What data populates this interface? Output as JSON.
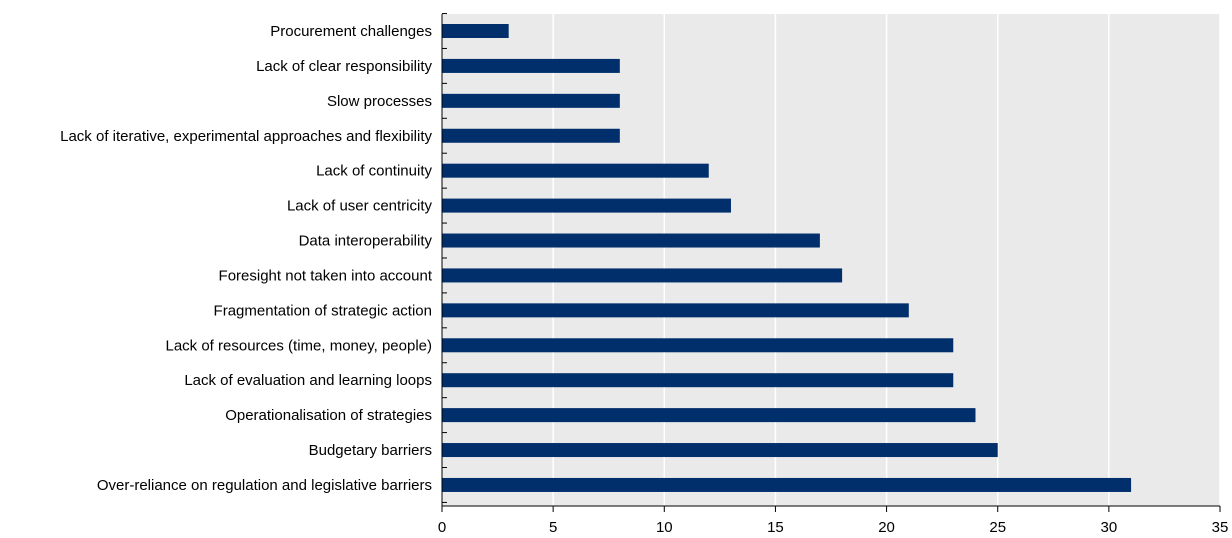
{
  "colors": {
    "bar": "#002F6C",
    "plot_background": "#EAEAEA",
    "gridline": "#FFFFFF",
    "axis": "#000000",
    "title": "#1F6FB5"
  },
  "chart_data": {
    "type": "bar",
    "orientation": "horizontal",
    "title": "",
    "xlabel": "",
    "ylabel": "",
    "categories": [
      "Procurement challenges",
      "Lack of clear responsibility",
      "Slow processes",
      "Lack of iterative, experimental approaches and flexibility",
      "Lack of continuity",
      "Lack of user centricity",
      "Data interoperability",
      "Foresight not taken into account",
      "Fragmentation of strategic action",
      "Lack of resources (time, money, people)",
      "Lack of evaluation and learning loops",
      "Operationalisation of strategies",
      "Budgetary barriers",
      "Over-reliance on regulation and legislative barriers"
    ],
    "values": [
      3,
      8,
      8,
      8,
      12,
      13,
      17,
      18,
      21,
      23,
      23,
      24,
      25,
      31
    ],
    "xlim": [
      0,
      35
    ],
    "xticks": [
      0,
      5,
      10,
      15,
      20,
      25,
      30,
      35
    ],
    "xtick_labels": [
      "0",
      "5",
      "10",
      "15",
      "20",
      "25",
      "30",
      "35"
    ],
    "grid": "vertical",
    "legend": "none"
  }
}
